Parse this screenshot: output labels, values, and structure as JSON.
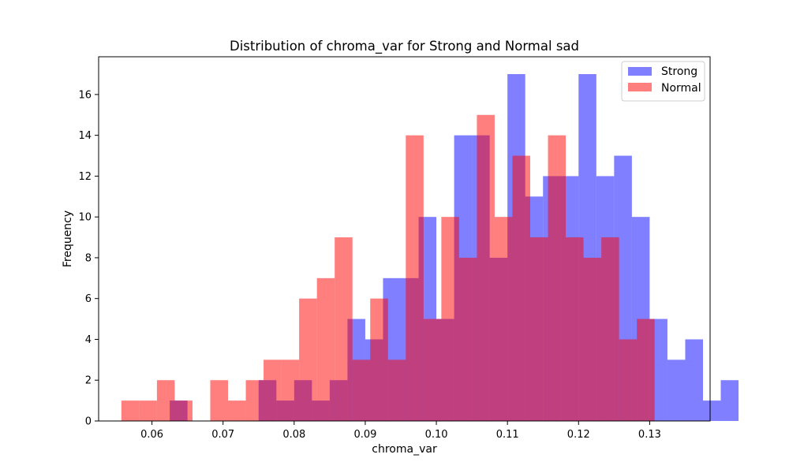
{
  "chart_data": {
    "type": "bar",
    "title": "Distribution of chroma_var for Strong and Normal sad",
    "xlabel": "chroma_var",
    "ylabel": "Frequency",
    "xlim": [
      0.0525,
      0.1385
    ],
    "ylim": [
      0,
      17.85
    ],
    "xticks": [
      0.06,
      0.07,
      0.08,
      0.09,
      0.1,
      0.11,
      0.12,
      0.13
    ],
    "xtick_labels": [
      "0.06",
      "0.07",
      "0.08",
      "0.09",
      "0.10",
      "0.11",
      "0.12",
      "0.13"
    ],
    "yticks": [
      0,
      2,
      4,
      6,
      8,
      10,
      12,
      14,
      16
    ],
    "ytick_labels": [
      "0",
      "2",
      "4",
      "6",
      "8",
      "10",
      "12",
      "14",
      "16"
    ],
    "legend_position": "top-right",
    "series": [
      {
        "name": "Strong",
        "color": "#0000ff",
        "opacity": 0.5,
        "bin_start": 0.0625,
        "bin_width": 0.0025,
        "counts": [
          1,
          0,
          0,
          0,
          0,
          2,
          1,
          2,
          1,
          2,
          5,
          4,
          7,
          7,
          10,
          5,
          14,
          14,
          8,
          17,
          11,
          12,
          12,
          17,
          12,
          13,
          10,
          5,
          3,
          4,
          1,
          2
        ]
      },
      {
        "name": "Normal",
        "color": "#ff0000",
        "opacity": 0.5,
        "bin_start": 0.0557,
        "bin_width": 0.0025,
        "counts": [
          1,
          1,
          2,
          1,
          0,
          2,
          1,
          2,
          3,
          3,
          6,
          7,
          9,
          3,
          6,
          3,
          14,
          5,
          10,
          8,
          15,
          10,
          13,
          9,
          14,
          9,
          8,
          9,
          4,
          5
        ]
      }
    ]
  }
}
